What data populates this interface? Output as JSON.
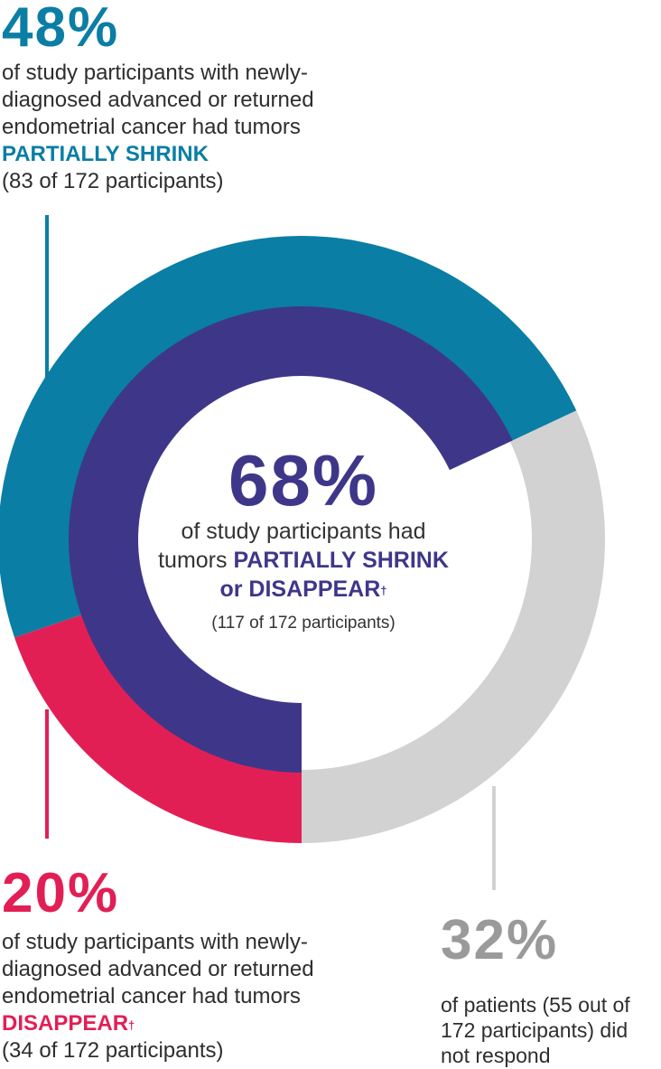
{
  "colors": {
    "partial": "#0a7ea4",
    "disappear": "#e21f55",
    "no_response": "#d2d2d2",
    "overall": "#3e3789",
    "leader_partial": "#0a7ea4",
    "leader_disappear": "#e21f55",
    "leader_no_response": "#d2d2d2"
  },
  "partial": {
    "pct": "48%",
    "desc_prefix": "of study participants with newly-diagnosed advanced or returned endometrial cancer had tumors ",
    "highlight": "PARTIALLY SHRINK",
    "count": "(83 of 172 participants)"
  },
  "overall": {
    "pct": "68%",
    "desc_prefix": "of study participants had tumors ",
    "highlight": "PARTIALLY SHRINK or DISAPPEAR",
    "dagger": "†",
    "count": "(117 of 172 participants)"
  },
  "disappear": {
    "pct": "20%",
    "desc_prefix": "of study participants with newly-diagnosed advanced or returned endometrial cancer had tumors ",
    "highlight": "DISAPPEAR",
    "dagger": "†",
    "count": "(34 of 172 participants)"
  },
  "no_response": {
    "pct": "32%",
    "desc": "of patients (55 out of 172 participants) did not respond"
  },
  "chart_data": {
    "type": "pie",
    "total": 172,
    "outer_ring": [
      {
        "name": "Partially shrink",
        "value": 83,
        "percent": 48
      },
      {
        "name": "Disappear",
        "value": 34,
        "percent": 20
      },
      {
        "name": "Did not respond",
        "value": 55,
        "percent": 32
      }
    ],
    "inner_ring": [
      {
        "name": "Partially shrink or disappear",
        "value": 117,
        "percent": 68
      }
    ]
  }
}
